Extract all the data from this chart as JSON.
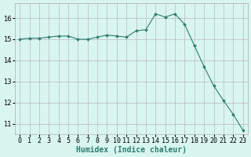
{
  "x": [
    0,
    1,
    2,
    3,
    4,
    5,
    6,
    7,
    8,
    9,
    10,
    11,
    12,
    13,
    14,
    15,
    16,
    17,
    18,
    19,
    20,
    21,
    22,
    23
  ],
  "y": [
    15.0,
    15.05,
    15.05,
    15.1,
    15.15,
    15.15,
    15.0,
    15.0,
    15.1,
    15.2,
    15.15,
    15.1,
    15.4,
    15.45,
    16.2,
    16.05,
    16.2,
    15.7,
    14.7,
    13.7,
    12.8,
    12.1,
    11.45,
    10.7
  ],
  "xlabel": "Humidex (Indice chaleur)",
  "ylim": [
    10.5,
    16.7
  ],
  "yticks": [
    11,
    12,
    13,
    14,
    15,
    16
  ],
  "line_color": "#2e7d6e",
  "marker_color": "#2e7d6e",
  "bg_color": "#d9f5f0",
  "grid_color": "#b8b8c8",
  "label_fontsize": 7,
  "tick_fontsize": 6
}
